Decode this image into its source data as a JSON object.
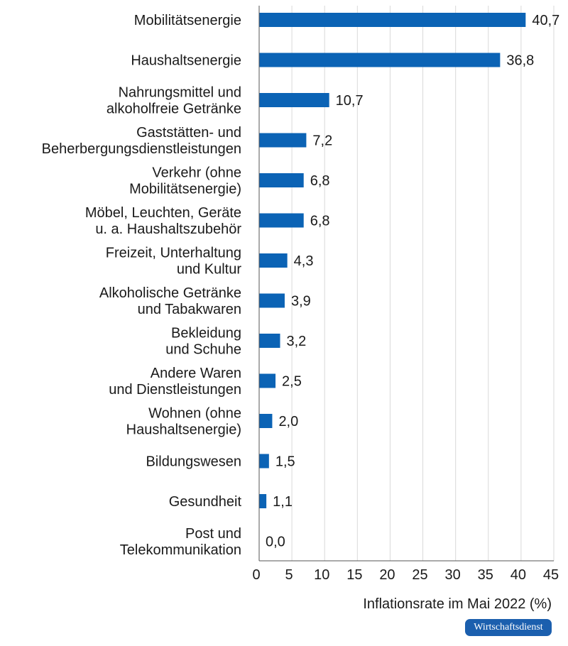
{
  "chart_data": {
    "type": "bar",
    "orientation": "horizontal",
    "categories": [
      "Mobilitätsenergie",
      "Haushaltsenergie",
      "Nahrungsmittel und\nalkoholfreie Getränke",
      "Gaststätten- und\nBeherbergungsdienstleistungen",
      "Verkehr (ohne\nMobilitätsenergie)",
      "Möbel, Leuchten, Geräte\nu. a. Haushaltszubehör",
      "Freizeit, Unterhaltung\nund Kultur",
      "Alkoholische Getränke\nund Tabakwaren",
      "Bekleidung\nund Schuhe",
      "Andere Waren\nund Dienstleistungen",
      "Wohnen (ohne\nHaushaltsenergie)",
      "Bildungswesen",
      "Gesundheit",
      "Post und\nTelekommunikation"
    ],
    "values": [
      40.7,
      36.8,
      10.7,
      7.2,
      6.8,
      6.8,
      4.3,
      3.9,
      3.2,
      2.5,
      2.0,
      1.5,
      1.1,
      0.0
    ],
    "value_labels": [
      "40,7",
      "36,8",
      "10,7",
      "7,2",
      "6,8",
      "6,8",
      "4,3",
      "3,9",
      "3,2",
      "2,5",
      "2,0",
      "1,5",
      "1,1",
      "0,0"
    ],
    "xlabel": "Inflationsrate im Mai 2022 (%)",
    "xlim": [
      0,
      45
    ],
    "xticks": [
      0,
      5,
      10,
      15,
      20,
      25,
      30,
      35,
      40,
      45
    ],
    "grid": true,
    "bar_color": "#0b63b5",
    "grid_color": "#d9d9d9",
    "axis_color": "#555555"
  },
  "source_badge": "Wirtschaftsdienst"
}
